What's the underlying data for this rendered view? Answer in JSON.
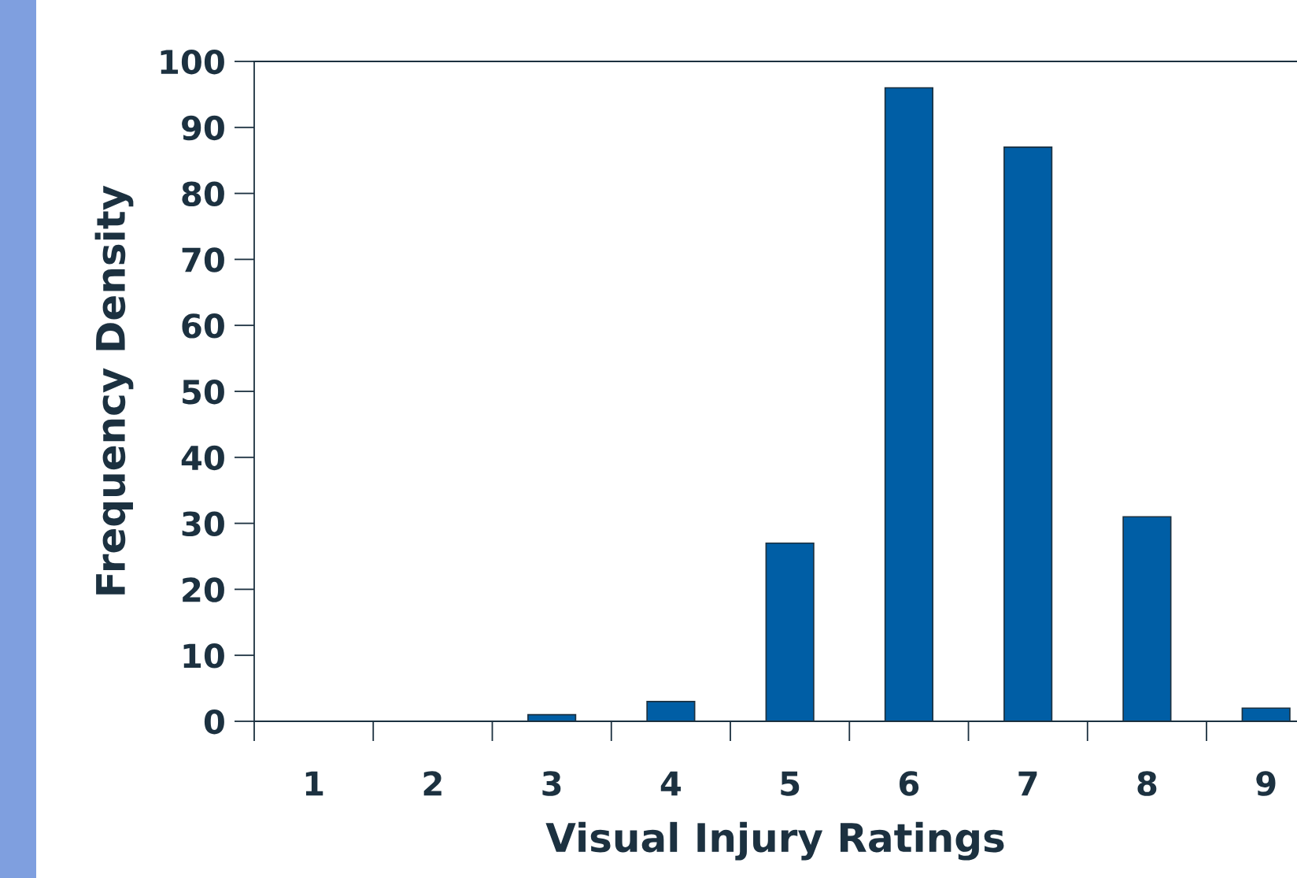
{
  "chart_data": {
    "type": "bar",
    "xlabel": "Visual Injury Ratings",
    "ylabel": "Frequency Density",
    "categories": [
      "1",
      "2",
      "3",
      "4",
      "5",
      "6",
      "7",
      "8",
      "9"
    ],
    "values": [
      0,
      0,
      1,
      3,
      27,
      96,
      87,
      31,
      2
    ],
    "color": "#005ea5",
    "ylim": [
      0,
      100
    ],
    "yticks": [
      0,
      10,
      20,
      30,
      40,
      50,
      60,
      70,
      80,
      90,
      100
    ],
    "grid": false,
    "legend": false
  }
}
